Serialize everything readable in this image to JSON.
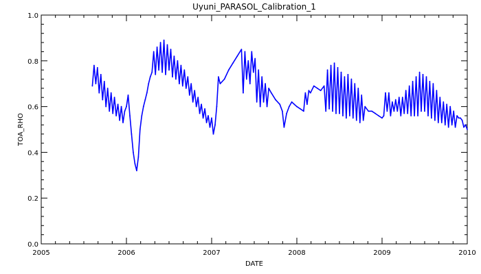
{
  "chart_data": {
    "type": "line",
    "title": "Uyuni_PARASOL_Calibration_1",
    "xlabel": "DATE",
    "ylabel": "TOA_RHO",
    "xlim": [
      2005,
      2010
    ],
    "ylim": [
      0.0,
      1.0
    ],
    "x_ticks": [
      "2005",
      "2006",
      "2007",
      "2008",
      "2009",
      "2010"
    ],
    "y_ticks": [
      "0.0",
      "0.2",
      "0.4",
      "0.6",
      "0.8",
      "1.0"
    ],
    "grid": false,
    "legend": "none",
    "line_color": "#0000ff",
    "series": [
      {
        "x": [
          2005.6,
          2005.62,
          2005.64,
          2005.66,
          2005.68,
          2005.7,
          2005.72,
          2005.74,
          2005.76,
          2005.78,
          2005.8,
          2005.82,
          2005.84,
          2005.86,
          2005.88,
          2005.9,
          2005.92,
          2005.94,
          2005.96,
          2005.98,
          2006.0,
          2006.02,
          2006.04,
          2006.06,
          2006.08,
          2006.1,
          2006.12,
          2006.14,
          2006.16,
          2006.18,
          2006.2,
          2006.22,
          2006.24,
          2006.26,
          2006.28,
          2006.3,
          2006.32,
          2006.34,
          2006.36,
          2006.38,
          2006.4,
          2006.42,
          2006.44,
          2006.46,
          2006.48,
          2006.5,
          2006.52,
          2006.54,
          2006.56,
          2006.58,
          2006.6,
          2006.62,
          2006.64,
          2006.66,
          2006.68,
          2006.7,
          2006.72,
          2006.74,
          2006.76,
          2006.78,
          2006.8,
          2006.82,
          2006.84,
          2006.86,
          2006.88,
          2006.9,
          2006.92,
          2006.94,
          2006.96,
          2006.98,
          2007.0,
          2007.02,
          2007.04,
          2007.06,
          2007.08,
          2007.1,
          2007.15,
          2007.2,
          2007.25,
          2007.3,
          2007.35,
          2007.37,
          2007.39,
          2007.41,
          2007.43,
          2007.45,
          2007.47,
          2007.49,
          2007.51,
          2007.53,
          2007.55,
          2007.57,
          2007.59,
          2007.61,
          2007.63,
          2007.65,
          2007.67,
          2007.7,
          2007.75,
          2007.8,
          2007.83,
          2007.85,
          2007.88,
          2007.91,
          2007.94,
          2007.97,
          2008.0,
          2008.04,
          2008.08,
          2008.1,
          2008.12,
          2008.14,
          2008.16,
          2008.2,
          2008.24,
          2008.28,
          2008.32,
          2008.34,
          2008.36,
          2008.38,
          2008.4,
          2008.42,
          2008.44,
          2008.46,
          2008.48,
          2008.5,
          2008.52,
          2008.54,
          2008.56,
          2008.58,
          2008.6,
          2008.62,
          2008.64,
          2008.66,
          2008.68,
          2008.7,
          2008.72,
          2008.74,
          2008.76,
          2008.78,
          2008.8,
          2008.84,
          2008.88,
          2008.92,
          2008.96,
          2009.0,
          2009.02,
          2009.04,
          2009.06,
          2009.08,
          2009.1,
          2009.12,
          2009.14,
          2009.16,
          2009.18,
          2009.2,
          2009.22,
          2009.24,
          2009.26,
          2009.28,
          2009.3,
          2009.32,
          2009.34,
          2009.36,
          2009.38,
          2009.4,
          2009.42,
          2009.44,
          2009.46,
          2009.48,
          2009.5,
          2009.52,
          2009.54,
          2009.56,
          2009.58,
          2009.6,
          2009.62,
          2009.64,
          2009.66,
          2009.68,
          2009.7,
          2009.72,
          2009.74,
          2009.76,
          2009.78,
          2009.8,
          2009.82,
          2009.84,
          2009.86,
          2009.88,
          2009.9,
          2009.92,
          2009.94,
          2009.96,
          2009.98,
          2010.0
        ],
        "y": [
          0.69,
          0.78,
          0.7,
          0.77,
          0.66,
          0.74,
          0.63,
          0.71,
          0.6,
          0.68,
          0.58,
          0.66,
          0.57,
          0.64,
          0.56,
          0.61,
          0.54,
          0.6,
          0.53,
          0.58,
          0.6,
          0.65,
          0.56,
          0.48,
          0.4,
          0.35,
          0.32,
          0.38,
          0.5,
          0.56,
          0.6,
          0.63,
          0.66,
          0.7,
          0.73,
          0.75,
          0.84,
          0.74,
          0.86,
          0.76,
          0.88,
          0.75,
          0.89,
          0.74,
          0.87,
          0.76,
          0.85,
          0.73,
          0.82,
          0.72,
          0.8,
          0.7,
          0.78,
          0.69,
          0.76,
          0.68,
          0.73,
          0.65,
          0.7,
          0.62,
          0.67,
          0.6,
          0.64,
          0.57,
          0.61,
          0.55,
          0.59,
          0.53,
          0.56,
          0.51,
          0.55,
          0.48,
          0.52,
          0.6,
          0.73,
          0.7,
          0.72,
          0.76,
          0.79,
          0.82,
          0.85,
          0.66,
          0.84,
          0.72,
          0.8,
          0.7,
          0.84,
          0.75,
          0.81,
          0.62,
          0.76,
          0.6,
          0.73,
          0.62,
          0.7,
          0.6,
          0.68,
          0.66,
          0.63,
          0.61,
          0.58,
          0.51,
          0.57,
          0.6,
          0.62,
          0.61,
          0.6,
          0.59,
          0.58,
          0.66,
          0.61,
          0.67,
          0.66,
          0.69,
          0.68,
          0.67,
          0.69,
          0.58,
          0.76,
          0.59,
          0.78,
          0.58,
          0.79,
          0.57,
          0.77,
          0.57,
          0.75,
          0.56,
          0.73,
          0.55,
          0.74,
          0.56,
          0.72,
          0.55,
          0.7,
          0.54,
          0.68,
          0.53,
          0.65,
          0.54,
          0.6,
          0.58,
          0.58,
          0.57,
          0.56,
          0.55,
          0.56,
          0.66,
          0.58,
          0.66,
          0.56,
          0.62,
          0.58,
          0.63,
          0.58,
          0.64,
          0.56,
          0.64,
          0.57,
          0.67,
          0.57,
          0.69,
          0.56,
          0.71,
          0.56,
          0.73,
          0.56,
          0.75,
          0.58,
          0.74,
          0.58,
          0.73,
          0.56,
          0.71,
          0.55,
          0.7,
          0.54,
          0.67,
          0.53,
          0.64,
          0.53,
          0.62,
          0.52,
          0.61,
          0.51,
          0.6,
          0.52,
          0.58,
          0.51,
          0.56,
          0.55,
          0.55,
          0.54,
          0.51,
          0.52,
          0.5
        ]
      }
    ]
  }
}
